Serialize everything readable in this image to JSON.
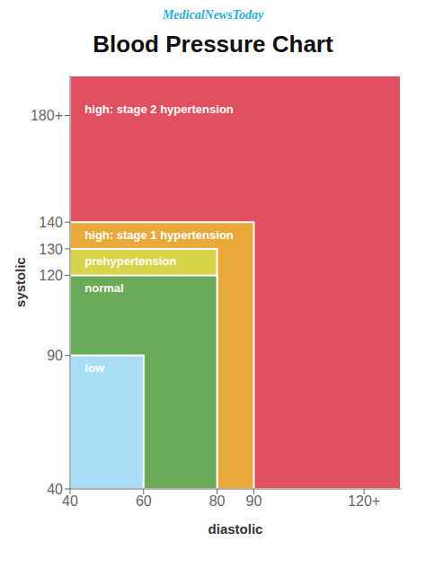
{
  "chart_data": {
    "type": "region",
    "title": "Blood Pressure Chart",
    "brand": "MedicalNewsToday",
    "brand_color": "#29ABD4",
    "xlabel": "diastolic",
    "ylabel": "systolic",
    "xlim": [
      40,
      130
    ],
    "ylim": [
      40,
      195
    ],
    "xticks": [
      40,
      60,
      80,
      90,
      {
        "value": 120,
        "label": "120+"
      }
    ],
    "yticks": [
      40,
      90,
      120,
      130,
      140,
      {
        "value": 180,
        "label": "180+"
      }
    ],
    "regions": [
      {
        "label": "high: stage 2 hypertension",
        "color": "#E05060",
        "polygon": [
          [
            40,
            40
          ],
          [
            130,
            40
          ],
          [
            130,
            195
          ],
          [
            40,
            195
          ]
        ],
        "text_x": 44,
        "text_y": 184,
        "text_color": "white"
      },
      {
        "label": "high: stage 1 hypertension",
        "color": "#E8A83A",
        "polygon": [
          [
            40,
            40
          ],
          [
            90,
            40
          ],
          [
            90,
            140
          ],
          [
            40,
            140
          ]
        ],
        "text_x": 44,
        "text_y": 137,
        "text_color": "white"
      },
      {
        "label": "prehypertension",
        "color": "#D8D44A",
        "polygon": [
          [
            40,
            40
          ],
          [
            80,
            40
          ],
          [
            80,
            130
          ],
          [
            40,
            130
          ]
        ],
        "text_x": 44,
        "text_y": 127,
        "text_color": "white"
      },
      {
        "label": "normal",
        "color": "#6BAA58",
        "polygon": [
          [
            40,
            40
          ],
          [
            80,
            40
          ],
          [
            80,
            120
          ],
          [
            40,
            120
          ]
        ],
        "text_x": 44,
        "text_y": 117,
        "text_color": "white"
      },
      {
        "label": "low",
        "color": "#A8DDF5",
        "polygon": [
          [
            40,
            40
          ],
          [
            60,
            40
          ],
          [
            60,
            90
          ],
          [
            40,
            90
          ]
        ],
        "text_x": 44,
        "text_y": 87,
        "text_color": "white"
      }
    ]
  }
}
